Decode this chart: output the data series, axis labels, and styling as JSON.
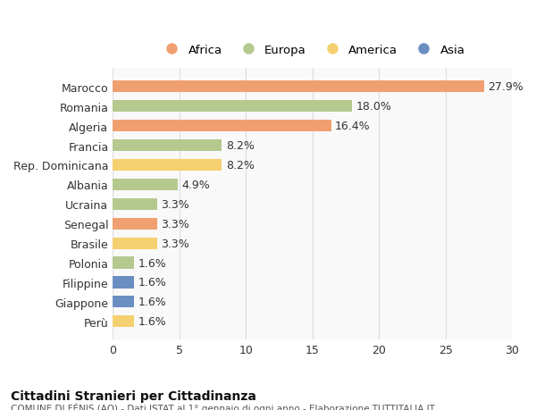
{
  "categories": [
    "Marocco",
    "Romania",
    "Algeria",
    "Francia",
    "Rep. Dominicana",
    "Albania",
    "Ucraina",
    "Senegal",
    "Brasile",
    "Polonia",
    "Filippine",
    "Giappone",
    "Perù"
  ],
  "values": [
    27.9,
    18.0,
    16.4,
    8.2,
    8.2,
    4.9,
    3.3,
    3.3,
    3.3,
    1.6,
    1.6,
    1.6,
    1.6
  ],
  "continents": [
    "Africa",
    "Europa",
    "Africa",
    "Europa",
    "America",
    "Europa",
    "Europa",
    "Africa",
    "America",
    "Europa",
    "Asia",
    "Asia",
    "America"
  ],
  "colors": {
    "Africa": "#F0A070",
    "Europa": "#B5C98E",
    "America": "#F5D070",
    "Asia": "#6B8EC2"
  },
  "legend_order": [
    "Africa",
    "Europa",
    "America",
    "Asia"
  ],
  "xlim": [
    0,
    30
  ],
  "xticks": [
    0,
    5,
    10,
    15,
    20,
    25,
    30
  ],
  "title_bold": "Cittadini Stranieri per Cittadinanza",
  "subtitle": "COMUNE DI FÉNIS (AO) - Dati ISTAT al 1° gennaio di ogni anno - Elaborazione TUTTITALIA.IT",
  "background_color": "#ffffff",
  "axes_background": "#f9f9f9",
  "bar_height": 0.6,
  "label_fontsize": 9,
  "tick_fontsize": 9
}
